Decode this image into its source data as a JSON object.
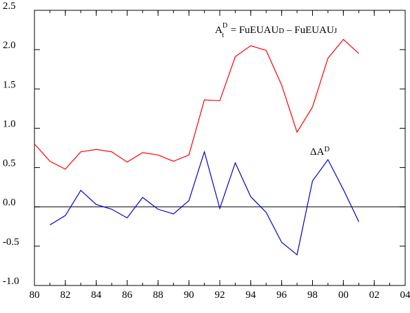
{
  "chart_data": {
    "type": "line",
    "x": [
      1980,
      1981,
      1982,
      1983,
      1984,
      1985,
      1986,
      1987,
      1988,
      1989,
      1990,
      1991,
      1992,
      1993,
      1994,
      1995,
      1996,
      1997,
      1998,
      1999,
      2000,
      2001
    ],
    "series": [
      {
        "color": "#ff0000",
        "values": [
          0.8,
          0.58,
          0.48,
          0.7,
          0.73,
          0.7,
          0.57,
          0.69,
          0.66,
          0.58,
          0.66,
          1.36,
          1.35,
          1.91,
          2.05,
          1.99,
          1.55,
          0.95,
          1.27,
          1.89,
          2.13,
          1.95
        ]
      },
      {
        "color": "#0000cc",
        "values": [
          null,
          -0.23,
          -0.11,
          0.21,
          0.03,
          -0.03,
          -0.14,
          0.12,
          -0.03,
          -0.09,
          0.08,
          0.7,
          -0.02,
          0.56,
          0.13,
          -0.07,
          -0.45,
          -0.61,
          0.33,
          0.6,
          0.22,
          -0.19
        ]
      }
    ],
    "xlim": [
      1980,
      2004
    ],
    "xticks": [
      {
        "value": 1980,
        "label": "80"
      },
      {
        "value": 1982,
        "label": "82"
      },
      {
        "value": 1984,
        "label": "84"
      },
      {
        "value": 1986,
        "label": "86"
      },
      {
        "value": 1988,
        "label": "88"
      },
      {
        "value": 1990,
        "label": "90"
      },
      {
        "value": 1992,
        "label": "92"
      },
      {
        "value": 1994,
        "label": "94"
      },
      {
        "value": 1996,
        "label": "96"
      },
      {
        "value": 1998,
        "label": "98"
      },
      {
        "value": 2000,
        "label": "00"
      },
      {
        "value": 2002,
        "label": "02"
      },
      {
        "value": 2004,
        "label": "04"
      }
    ],
    "ylim": [
      -1.0,
      2.5
    ],
    "yticks": [
      {
        "value": -1.0,
        "label": "-1.0"
      },
      -0.5,
      {
        "value": 0.0,
        "label": "0.0"
      },
      0.5,
      {
        "value": 1.0,
        "label": "1.0"
      },
      1.5,
      {
        "value": 2.0,
        "label": "2.0"
      },
      2.5
    ],
    "annotations": [
      {
        "base": "A",
        "sup": "D",
        "sub": "t",
        "eq": " = FuEUAU",
        "sub1": "D",
        "minus": " – FuEUAU",
        "sub2": "J"
      },
      {
        "base": "ΔA",
        "sup": "D"
      }
    ]
  }
}
